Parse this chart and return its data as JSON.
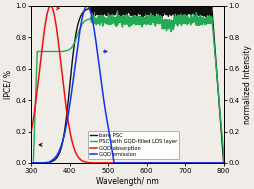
{
  "title": "",
  "xlabel": "Wavelength/ nm",
  "ylabel_left": "IPCE/ %",
  "ylabel_right": "normalized Intensity",
  "xlim": [
    300,
    800
  ],
  "ylim_left": [
    0.0,
    1.0
  ],
  "ylim_right": [
    0.0,
    1.0
  ],
  "legend_entries": [
    "bare PSC",
    "PSC with GQD-filled LDS layer",
    "GQD absorption",
    "GQD emission"
  ],
  "colors": {
    "bare_psc": "#111111",
    "psc_gqd": "#22aa55",
    "gqd_abs": "#ee1111",
    "gqd_em": "#1133ee"
  },
  "background_color": "#f0ede8"
}
